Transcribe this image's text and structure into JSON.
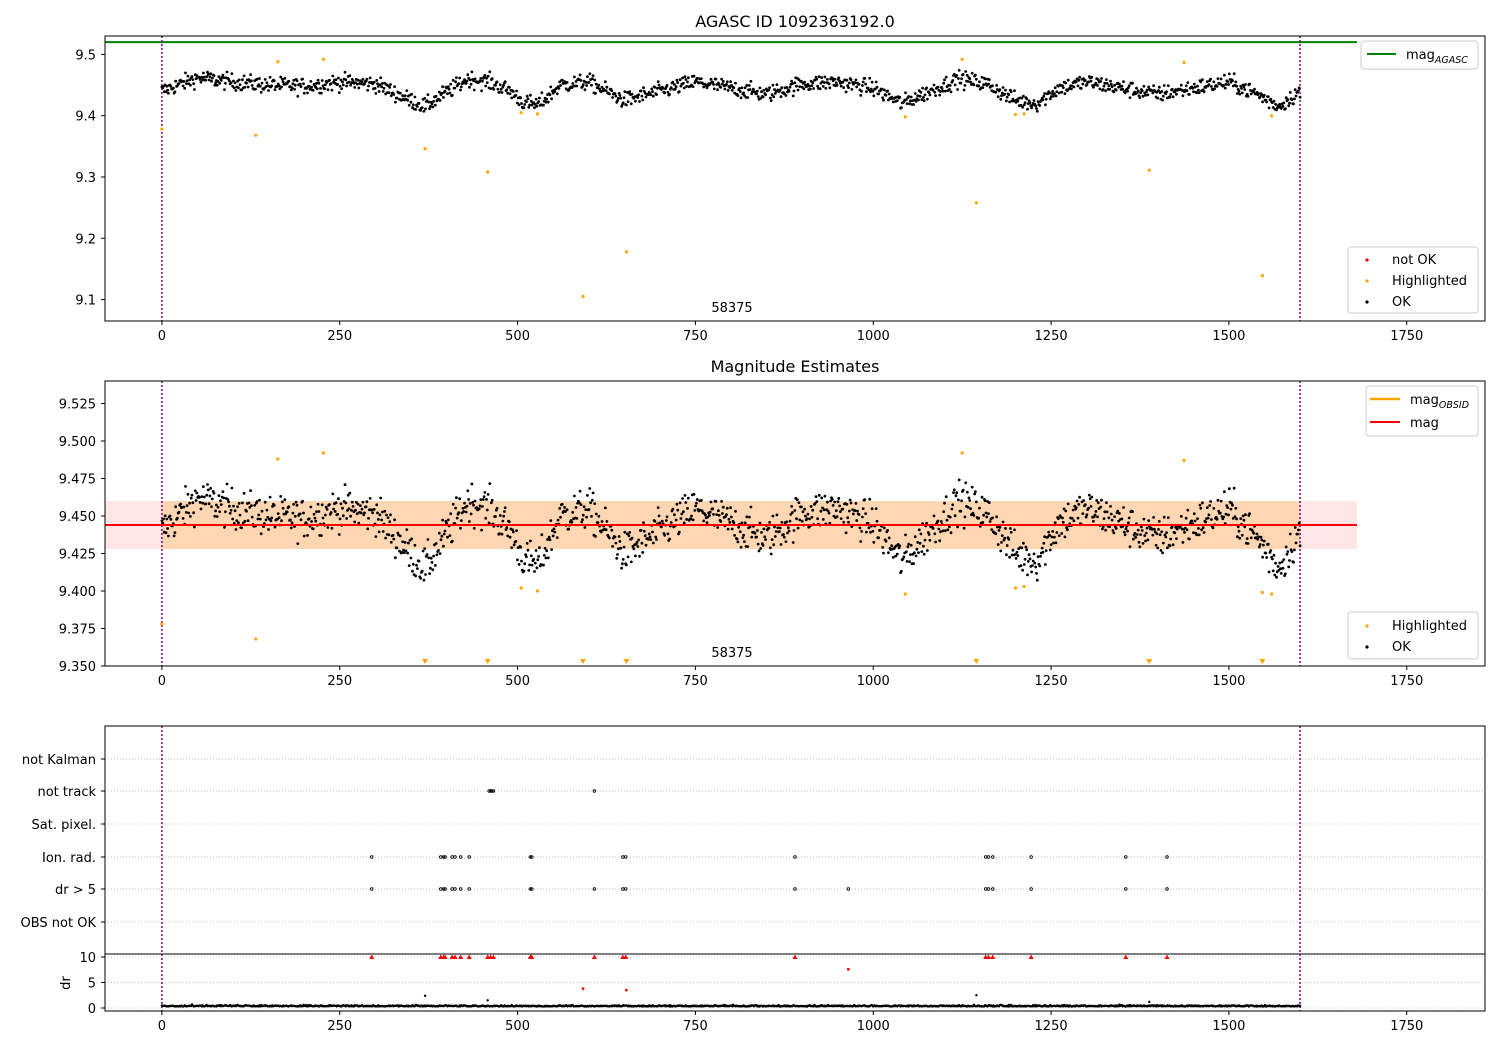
{
  "chart_data": [
    {
      "type": "scatter",
      "title": "AGASC ID 1092363192.0",
      "xlabel": "",
      "ylabel": "",
      "xlim": [
        -80,
        1860
      ],
      "ylim": [
        9.065,
        9.53
      ],
      "xticks": [
        0,
        250,
        500,
        750,
        1000,
        1250,
        1500,
        1750
      ],
      "yticks": [
        9.1,
        9.2,
        9.3,
        9.4,
        9.5
      ],
      "grid": false,
      "annotation": "58375",
      "vlines": [
        0,
        1600
      ],
      "hline": {
        "name": "mag_AGASC",
        "y": 9.52,
        "x": [
          -80,
          1680
        ],
        "color": "#008000"
      },
      "legend_lines": [
        {
          "label": "mag",
          "sub": "AGASC",
          "color": "#008000"
        }
      ],
      "legend_points": [
        {
          "label": "not OK",
          "color": "#ff0000"
        },
        {
          "label": "Highlighted",
          "color": "#ffa500"
        },
        {
          "label": "OK",
          "color": "#000000"
        }
      ],
      "highlighted": {
        "x": [
          0,
          132,
          163,
          227,
          370,
          458,
          505,
          528,
          592,
          653,
          1045,
          1125,
          1145,
          1200,
          1212,
          1388,
          1437,
          1547,
          1560
        ],
        "y": [
          9.378,
          9.368,
          9.488,
          9.492,
          9.346,
          9.308,
          9.405,
          9.403,
          9.105,
          9.178,
          9.398,
          9.492,
          9.258,
          9.402,
          9.403,
          9.311,
          9.487,
          9.139,
          9.4
        ]
      },
      "ok_trend": {
        "x": [
          0,
          50,
          100,
          150,
          200,
          250,
          300,
          340,
          370,
          400,
          430,
          460,
          490,
          510,
          530,
          560,
          600,
          650,
          700,
          750,
          800,
          850,
          900,
          950,
          1000,
          1040,
          1080,
          1120,
          1160,
          1200,
          1230,
          1260,
          1300,
          1350,
          1400,
          1450,
          1500,
          1540,
          1570,
          1600
        ],
        "y": [
          9.44,
          9.462,
          9.455,
          9.45,
          9.448,
          9.455,
          9.452,
          9.43,
          9.415,
          9.438,
          9.46,
          9.455,
          9.44,
          9.42,
          9.418,
          9.45,
          9.455,
          9.425,
          9.44,
          9.455,
          9.445,
          9.435,
          9.452,
          9.455,
          9.445,
          9.42,
          9.44,
          9.46,
          9.452,
          9.425,
          9.42,
          9.445,
          9.455,
          9.445,
          9.435,
          9.445,
          9.455,
          9.435,
          9.415,
          9.44
        ]
      },
      "ok_scatter": 0.012
    },
    {
      "type": "scatter",
      "title": "Magnitude Estimates",
      "xlabel": "",
      "ylabel": "",
      "xlim": [
        -80,
        1860
      ],
      "ylim": [
        9.35,
        9.54
      ],
      "xticks": [
        0,
        250,
        500,
        750,
        1000,
        1250,
        1500,
        1750
      ],
      "yticks": [
        9.35,
        9.375,
        9.4,
        9.425,
        9.45,
        9.475,
        9.5,
        9.525
      ],
      "grid": false,
      "annotation": "58375",
      "vlines": [
        0,
        1600
      ],
      "band_mag_obsid": {
        "x": [
          0,
          1600
        ],
        "y": [
          9.428,
          9.46
        ],
        "color": "#ffa500"
      },
      "band_mag": {
        "x": [
          -80,
          1680
        ],
        "y": [
          9.428,
          9.46
        ],
        "color": "#ff0000"
      },
      "mag_line": {
        "name": "mag",
        "y": 9.444,
        "x": [
          -80,
          1680
        ],
        "color": "#ff0000"
      },
      "mag_obsid_line": {
        "name": "mag_OBSID",
        "y": 9.444,
        "x": [
          0,
          1600
        ],
        "color": "#ffa500"
      },
      "legend_lines": [
        {
          "label": "mag",
          "sub": "OBSID",
          "color": "#ffa500"
        },
        {
          "label": "mag",
          "sub": "",
          "color": "#ff0000"
        }
      ],
      "legend_points": [
        {
          "label": "Highlighted",
          "color": "#ffa500"
        },
        {
          "label": "OK",
          "color": "#000000"
        }
      ],
      "highlighted": {
        "x": [
          0,
          132,
          163,
          227,
          505,
          528,
          1045,
          1125,
          1200,
          1212,
          1437,
          1547,
          1560
        ],
        "y": [
          9.378,
          9.368,
          9.488,
          9.492,
          9.402,
          9.4,
          9.398,
          9.492,
          9.402,
          9.403,
          9.487,
          9.399,
          9.398
        ]
      },
      "offscale_markers": {
        "x": [
          370,
          458,
          592,
          653,
          1145,
          1388,
          1547
        ],
        "y_clip": 9.352
      },
      "ok_scatter": 0.014
    },
    {
      "type": "scatter",
      "title": "",
      "xlabel": "",
      "ylabel": "",
      "xlim": [
        -80,
        1860
      ],
      "xticks": [
        0,
        250,
        500,
        750,
        1000,
        1250,
        1500,
        1750
      ],
      "grid": true,
      "vlines": [
        0,
        1600
      ],
      "flag_categories": [
        "not Kalman",
        "not track",
        "Sat. pixel.",
        "Ion. rad.",
        "dr > 5",
        "OBS not OK"
      ],
      "flags": {
        "not track": [
          460,
          462,
          464,
          466,
          608
        ],
        "Ion. rad.": [
          295,
          392,
          396,
          398,
          408,
          412,
          420,
          432,
          518,
          520,
          648,
          652,
          890,
          1158,
          1162,
          1168,
          1222,
          1355,
          1413
        ],
        "dr > 5": [
          295,
          392,
          396,
          398,
          408,
          412,
          420,
          432,
          518,
          520,
          608,
          648,
          652,
          890,
          965,
          1158,
          1162,
          1168,
          1222,
          1355,
          1413
        ]
      },
      "dr": {
        "ylabel": "dr",
        "yticks": [
          0,
          5,
          10
        ],
        "ylim": [
          -0.5,
          10.6
        ],
        "clip_at": 10,
        "clipped_x": [
          295,
          392,
          396,
          398,
          408,
          412,
          420,
          432,
          458,
          462,
          466,
          518,
          520,
          608,
          648,
          652,
          890,
          1158,
          1162,
          1168,
          1222,
          1355,
          1413
        ],
        "red_points": {
          "x": [
            592,
            653,
            965
          ],
          "y": [
            3.8,
            3.5,
            7.6
          ]
        },
        "spikes": {
          "x": [
            370,
            458,
            1145,
            1388
          ],
          "y": [
            2.4,
            1.5,
            2.5,
            1.2
          ]
        },
        "baseline": 0.3
      }
    }
  ]
}
